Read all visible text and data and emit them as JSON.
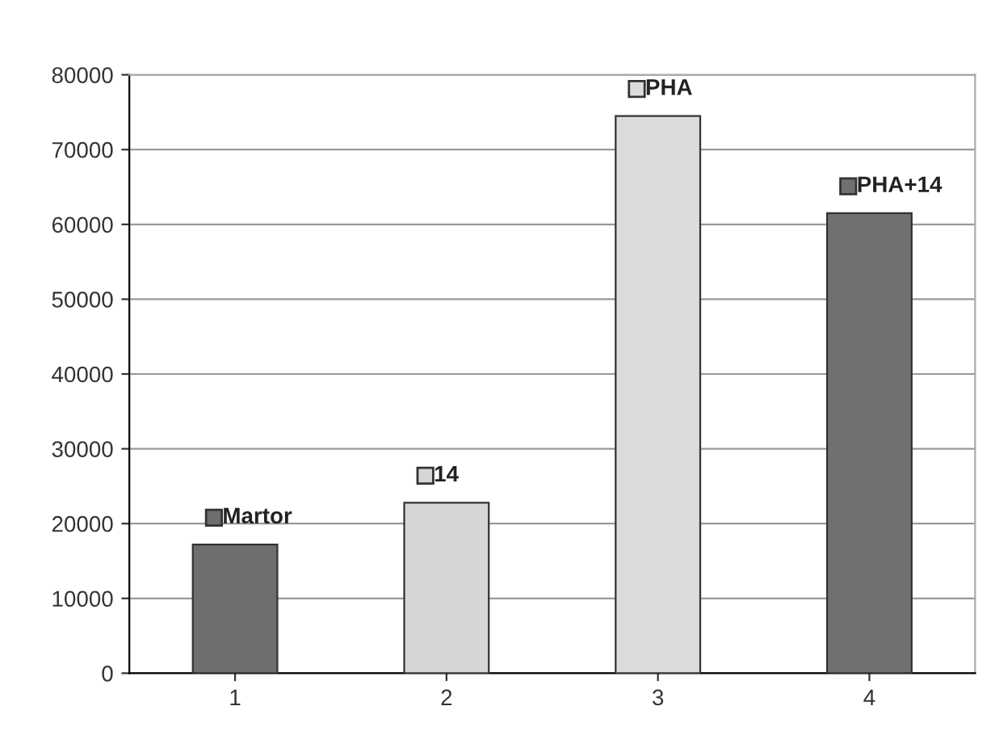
{
  "chart_data": {
    "type": "bar",
    "categories": [
      "1",
      "2",
      "3",
      "4"
    ],
    "series": [
      {
        "name": "Martor",
        "color": "#6e6e6e",
        "values": [
          17200,
          null,
          null,
          null
        ]
      },
      {
        "name": "14",
        "color": "#d6d6d6",
        "values": [
          null,
          22800,
          null,
          null
        ]
      },
      {
        "name": "PHA",
        "color": "#dcdcdc",
        "values": [
          null,
          null,
          74500,
          null
        ]
      },
      {
        "name": "PHA+14",
        "color": "#707070",
        "values": [
          null,
          null,
          null,
          61500
        ]
      }
    ],
    "ylim": [
      0,
      80000
    ],
    "yticks": [
      0,
      10000,
      20000,
      30000,
      40000,
      50000,
      60000,
      70000,
      80000
    ],
    "grid": "y",
    "legend": "top"
  }
}
